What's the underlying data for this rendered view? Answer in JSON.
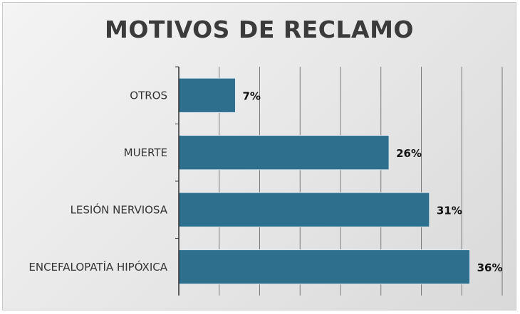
{
  "chart_data": {
    "type": "bar",
    "orientation": "horizontal",
    "title": "MOTIVOS DE RECLAMO",
    "categories": [
      "OTROS",
      "MUERTE",
      "LESIÓN NERVIOSA",
      "ENCEFALOPATÍA HIPÓXICA"
    ],
    "values": [
      7,
      26,
      31,
      36
    ],
    "data_labels": [
      "7%",
      "26%",
      "31%",
      "36%"
    ],
    "value_unit": "%",
    "xlim": [
      0,
      40
    ],
    "grid": true,
    "legend": "none",
    "colors": {
      "bar": "#2e6f8d",
      "bar_border": "#dfe8ee",
      "grid": "#7a7a7a",
      "axis": "#3a3a3a"
    }
  }
}
